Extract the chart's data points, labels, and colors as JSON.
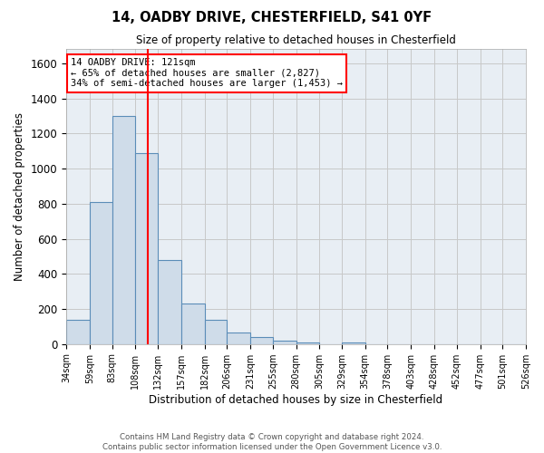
{
  "title1": "14, OADBY DRIVE, CHESTERFIELD, S41 0YF",
  "title2": "Size of property relative to detached houses in Chesterfield",
  "xlabel": "Distribution of detached houses by size in Chesterfield",
  "ylabel": "Number of detached properties",
  "bar_heights": [
    140,
    810,
    1300,
    1090,
    480,
    230,
    140,
    65,
    40,
    20,
    10,
    0,
    10,
    0,
    0,
    0,
    0,
    0,
    0,
    0
  ],
  "bin_edges": [
    34,
    59,
    83,
    108,
    132,
    157,
    182,
    206,
    231,
    255,
    280,
    305,
    329,
    354,
    378,
    403,
    428,
    452,
    477,
    501,
    526
  ],
  "tick_labels": [
    "34sqm",
    "59sqm",
    "83sqm",
    "108sqm",
    "132sqm",
    "157sqm",
    "182sqm",
    "206sqm",
    "231sqm",
    "255sqm",
    "280sqm",
    "305sqm",
    "329sqm",
    "354sqm",
    "378sqm",
    "403sqm",
    "428sqm",
    "452sqm",
    "477sqm",
    "501sqm",
    "526sqm"
  ],
  "property_size": 121,
  "property_label": "14 OADBY DRIVE: 121sqm",
  "annotation_line1": "← 65% of detached houses are smaller (2,827)",
  "annotation_line2": "34% of semi-detached houses are larger (1,453) →",
  "bar_color": "#cfdce9",
  "bar_edge_color": "#5b8db8",
  "vline_color": "red",
  "grid_color": "#c8c8c8",
  "background_color": "#e8eef4",
  "annotation_box_color": "white",
  "annotation_box_edge": "red",
  "footer_text": "Contains HM Land Registry data © Crown copyright and database right 2024.\nContains public sector information licensed under the Open Government Licence v3.0.",
  "ylim": [
    0,
    1680
  ],
  "yticks": [
    0,
    200,
    400,
    600,
    800,
    1000,
    1200,
    1400,
    1600
  ]
}
